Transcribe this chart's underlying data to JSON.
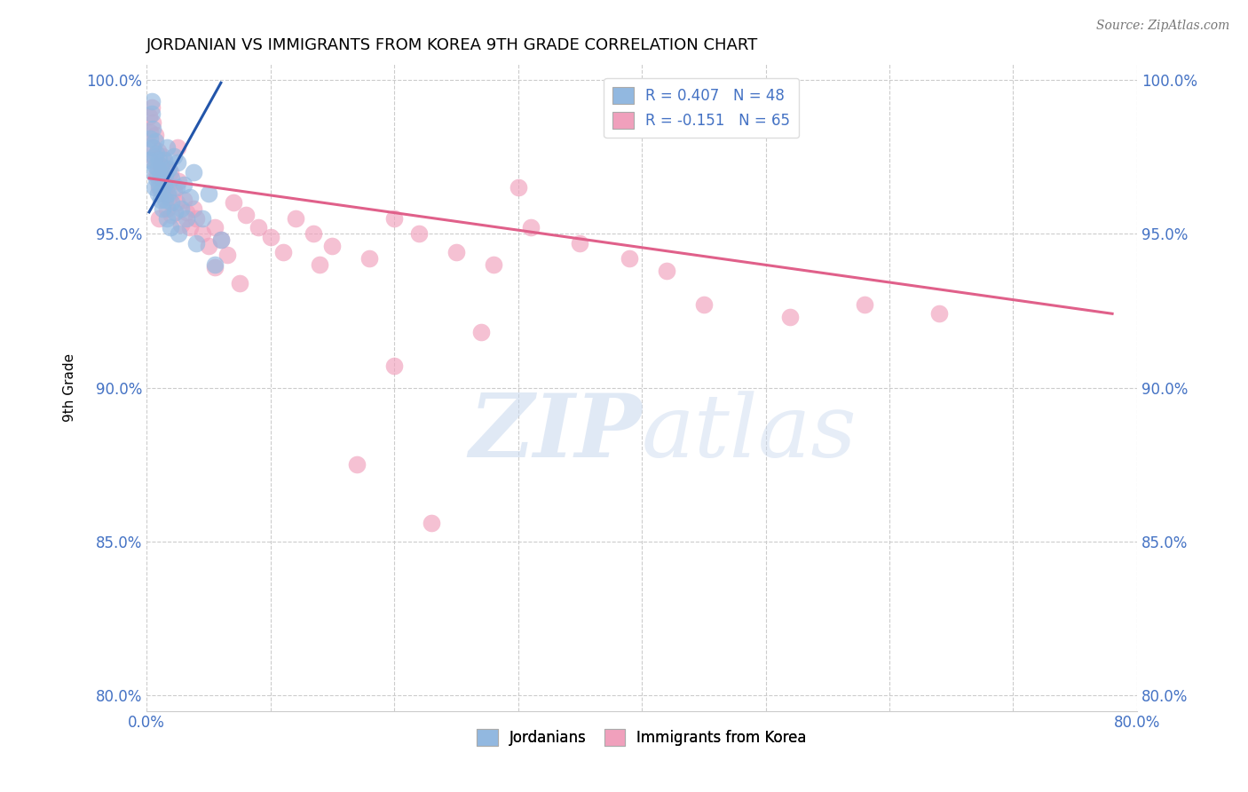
{
  "title": "JORDANIAN VS IMMIGRANTS FROM KOREA 9TH GRADE CORRELATION CHART",
  "source": "Source: ZipAtlas.com",
  "ylabel": "9th Grade",
  "xlim": [
    0.0,
    0.8
  ],
  "ylim": [
    0.795,
    1.005
  ],
  "yticks": [
    0.8,
    0.85,
    0.9,
    0.95,
    1.0
  ],
  "ytick_labels": [
    "80.0%",
    "85.0%",
    "90.0%",
    "95.0%",
    "100.0%"
  ],
  "xticks": [
    0.0,
    0.1,
    0.2,
    0.3,
    0.4,
    0.5,
    0.6,
    0.7,
    0.8
  ],
  "xtick_labels": [
    "0.0%",
    "",
    "",
    "",
    "",
    "",
    "",
    "",
    "80.0%"
  ],
  "legend_r1": "R = 0.407   N = 48",
  "legend_r2": "R = -0.151   N = 65",
  "blue_color": "#92b8e0",
  "pink_color": "#f0a0bc",
  "line_blue": "#2255aa",
  "line_pink": "#e0608a",
  "text_blue": "#4472c4",
  "watermark_zip": "ZIP",
  "watermark_atlas": "atlas",
  "jordanians_x": [
    0.002,
    0.003,
    0.004,
    0.004,
    0.005,
    0.005,
    0.005,
    0.006,
    0.006,
    0.007,
    0.007,
    0.008,
    0.008,
    0.009,
    0.009,
    0.01,
    0.01,
    0.011,
    0.011,
    0.012,
    0.012,
    0.013,
    0.014,
    0.014,
    0.015,
    0.015,
    0.016,
    0.016,
    0.017,
    0.018,
    0.019,
    0.02,
    0.02,
    0.022,
    0.023,
    0.024,
    0.025,
    0.026,
    0.028,
    0.03,
    0.032,
    0.035,
    0.038,
    0.04,
    0.045,
    0.05,
    0.055,
    0.06
  ],
  "jordanians_y": [
    0.974,
    0.981,
    0.989,
    0.993,
    0.97,
    0.978,
    0.984,
    0.965,
    0.975,
    0.972,
    0.98,
    0.968,
    0.976,
    0.963,
    0.971,
    0.966,
    0.974,
    0.961,
    0.969,
    0.964,
    0.972,
    0.958,
    0.966,
    0.974,
    0.961,
    0.969,
    0.978,
    0.955,
    0.963,
    0.971,
    0.952,
    0.96,
    0.968,
    0.975,
    0.957,
    0.965,
    0.973,
    0.95,
    0.958,
    0.966,
    0.955,
    0.962,
    0.97,
    0.947,
    0.955,
    0.963,
    0.94,
    0.948
  ],
  "korea_x": [
    0.002,
    0.003,
    0.004,
    0.005,
    0.005,
    0.006,
    0.007,
    0.008,
    0.009,
    0.01,
    0.011,
    0.012,
    0.013,
    0.014,
    0.015,
    0.016,
    0.017,
    0.018,
    0.019,
    0.02,
    0.022,
    0.024,
    0.026,
    0.028,
    0.03,
    0.032,
    0.035,
    0.038,
    0.04,
    0.045,
    0.05,
    0.055,
    0.06,
    0.065,
    0.07,
    0.08,
    0.09,
    0.1,
    0.11,
    0.12,
    0.135,
    0.15,
    0.18,
    0.2,
    0.22,
    0.25,
    0.28,
    0.31,
    0.35,
    0.39,
    0.42,
    0.01,
    0.025,
    0.055,
    0.17,
    0.23,
    0.27,
    0.3,
    0.45,
    0.52,
    0.58,
    0.64,
    0.2,
    0.14,
    0.075
  ],
  "korea_y": [
    0.988,
    0.983,
    0.991,
    0.978,
    0.986,
    0.974,
    0.982,
    0.969,
    0.977,
    0.965,
    0.972,
    0.968,
    0.975,
    0.963,
    0.971,
    0.958,
    0.966,
    0.962,
    0.97,
    0.956,
    0.964,
    0.96,
    0.967,
    0.953,
    0.961,
    0.957,
    0.952,
    0.958,
    0.955,
    0.95,
    0.946,
    0.952,
    0.948,
    0.943,
    0.96,
    0.956,
    0.952,
    0.949,
    0.944,
    0.955,
    0.95,
    0.946,
    0.942,
    0.955,
    0.95,
    0.944,
    0.94,
    0.952,
    0.947,
    0.942,
    0.938,
    0.955,
    0.978,
    0.939,
    0.875,
    0.856,
    0.918,
    0.965,
    0.927,
    0.923,
    0.927,
    0.924,
    0.907,
    0.94,
    0.934
  ],
  "blue_trendline_x": [
    0.002,
    0.06
  ],
  "blue_trendline_y": [
    0.957,
    0.999
  ],
  "pink_trendline_x": [
    0.002,
    0.78
  ],
  "pink_trendline_y": [
    0.968,
    0.924
  ]
}
